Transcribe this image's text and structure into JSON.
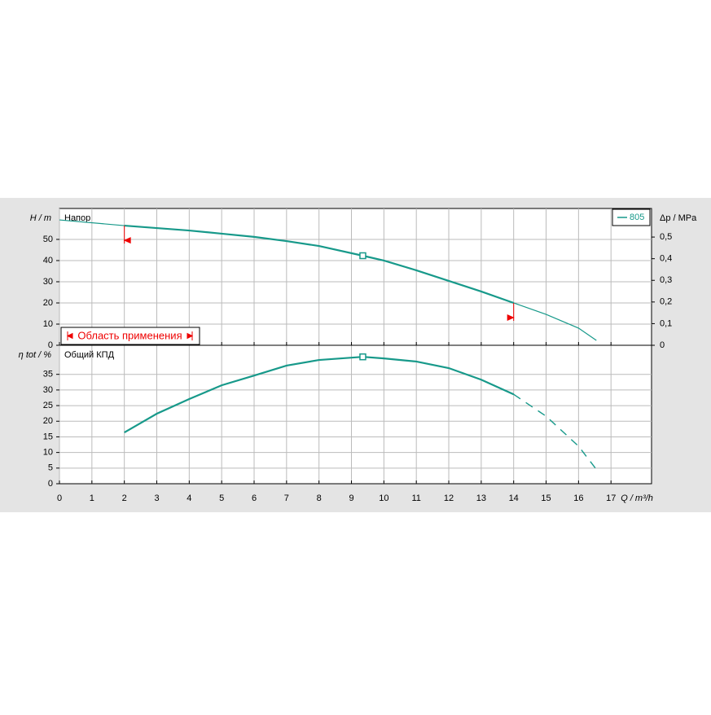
{
  "chart_data": [
    {
      "type": "line",
      "y_label": "H / m",
      "y2_label": "Δp / MPa",
      "annotation": "Напор",
      "range_label": "Область применения",
      "xlim": [
        0,
        18.25
      ],
      "xticks": [
        0,
        1,
        2,
        3,
        4,
        5,
        6,
        7,
        8,
        9,
        10,
        11,
        12,
        13,
        14,
        15,
        16,
        17
      ],
      "ylim": [
        0,
        64.6
      ],
      "yticks": [
        0,
        10,
        20,
        30,
        40,
        50
      ],
      "y2lim": [
        0,
        0.632
      ],
      "y2ticks": [
        0,
        {
          "value": 0.1,
          "label": "0,1"
        },
        {
          "value": 0.2,
          "label": "0,2"
        },
        {
          "value": 0.3,
          "label": "0,3"
        },
        {
          "value": 0.4,
          "label": "0,4"
        },
        {
          "value": 0.5,
          "label": "0,5"
        }
      ],
      "grid": true,
      "operating_range": [
        2,
        14
      ],
      "operating_point": {
        "x": 9.35,
        "y": 42.3
      },
      "series": [
        {
          "name": "805",
          "color": "#17998a",
          "x": [
            0,
            2,
            4,
            5,
            6,
            7,
            8,
            9.35,
            10,
            11,
            12,
            13,
            14,
            15,
            16,
            16.55
          ],
          "values": [
            59.2,
            56.5,
            54.2,
            52.7,
            51.2,
            49.2,
            46.9,
            42.3,
            40,
            35.4,
            30.4,
            25.4,
            20,
            14.6,
            8.1,
            2.3
          ]
        }
      ]
    },
    {
      "type": "line",
      "y_label": "η tot / %",
      "annotation": "Общий КПД",
      "x_label": "Q / m³/h",
      "xlim": [
        0,
        18.25
      ],
      "xticks": [
        0,
        1,
        2,
        3,
        4,
        5,
        6,
        7,
        8,
        9,
        10,
        11,
        12,
        13,
        14,
        15,
        16,
        17
      ],
      "ylim": [
        0,
        44.3
      ],
      "yticks": [
        0,
        5,
        10,
        15,
        20,
        25,
        30,
        35
      ],
      "grid": true,
      "operating_range": [
        2,
        14
      ],
      "operating_point": {
        "x": 9.35,
        "y": 40.6
      },
      "series": [
        {
          "color": "#17998a",
          "x": [
            2,
            3,
            4,
            5,
            6,
            7,
            8,
            9.35,
            10,
            11,
            12,
            13,
            14,
            15,
            16,
            16.6
          ],
          "values": [
            16.4,
            22.4,
            27.1,
            31.5,
            34.6,
            37.8,
            39.6,
            40.6,
            40.1,
            39.1,
            37,
            33.3,
            28.6,
            21.6,
            12,
            3.9
          ]
        }
      ]
    }
  ]
}
